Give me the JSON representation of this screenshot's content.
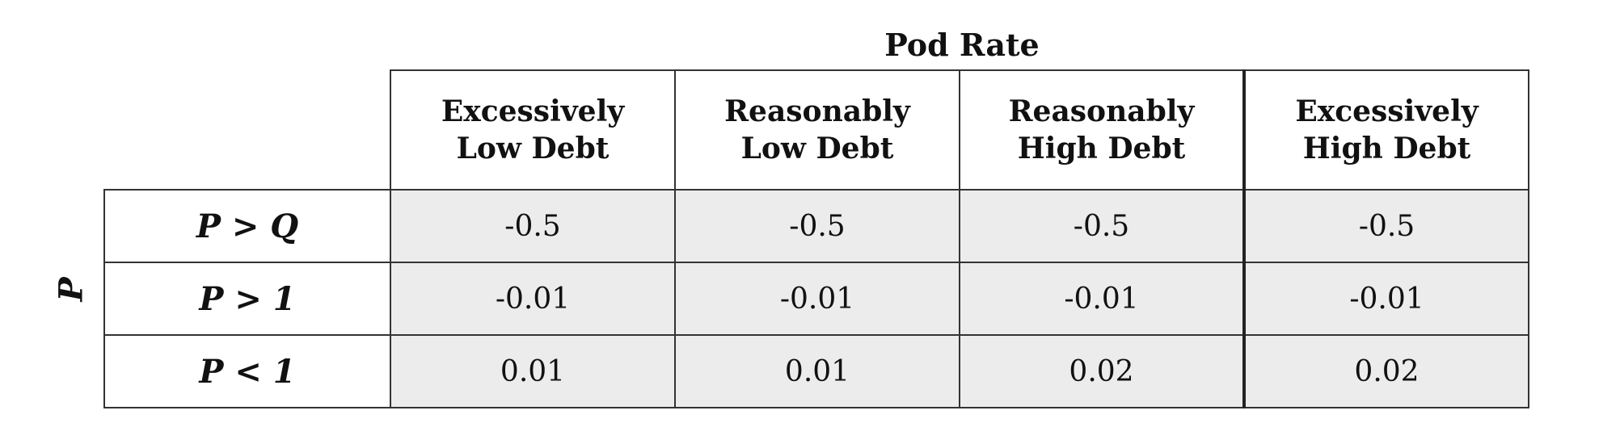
{
  "column_group_title": "Pod Rate",
  "row_group_title": "P",
  "columns": [
    {
      "line1": "Excessively",
      "line2": "Low Debt"
    },
    {
      "line1": "Reasonably",
      "line2": "Low Debt"
    },
    {
      "line1": "Reasonably",
      "line2": "High Debt"
    },
    {
      "line1": "Excessively",
      "line2": "High Debt"
    }
  ],
  "rows": [
    {
      "label": "P > Q",
      "values": [
        "-0.5",
        "-0.5",
        "-0.5",
        "-0.5"
      ]
    },
    {
      "label": "P > 1",
      "values": [
        "-0.01",
        "-0.01",
        "-0.01",
        "-0.01"
      ]
    },
    {
      "label": "P < 1",
      "values": [
        "0.01",
        "0.01",
        "0.02",
        "0.02"
      ]
    }
  ]
}
